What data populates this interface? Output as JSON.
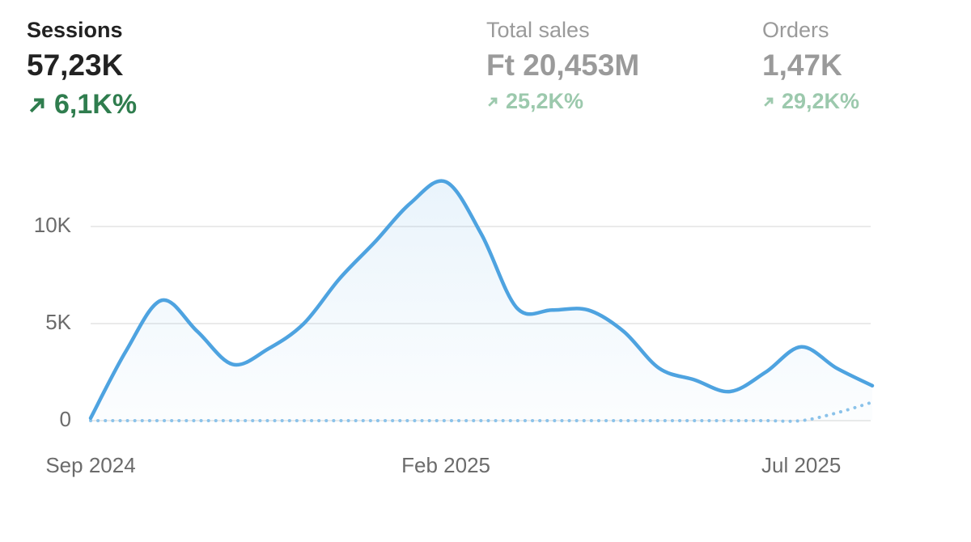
{
  "metrics": [
    {
      "label": "Sessions",
      "value": "57,23K",
      "change": "6,1K%"
    },
    {
      "label": "Total sales",
      "value": "Ft 20,453M",
      "change": "25,2K%"
    },
    {
      "label": "Orders",
      "value": "1,47K",
      "change": "29,2K%"
    }
  ],
  "chart_data": {
    "type": "line",
    "categories": [
      "Sep 2024",
      null,
      null,
      null,
      null,
      null,
      null,
      null,
      null,
      null,
      "Feb 2025",
      null,
      null,
      null,
      null,
      null,
      null,
      null,
      null,
      null,
      "Jul 2025",
      null,
      null
    ],
    "series": [
      {
        "color": "#4ea3e0",
        "values": [
          130,
          3600,
          6200,
          4600,
          2900,
          3700,
          5000,
          7300,
          9200,
          11200,
          12300,
          9600,
          5800,
          5700,
          5700,
          4600,
          2700,
          2100,
          1500,
          2500,
          3800,
          2700,
          1800
        ]
      },
      {
        "color": "#8cc3ea",
        "dotted": true,
        "values": [
          0,
          0,
          0,
          0,
          0,
          0,
          0,
          0,
          0,
          0,
          0,
          0,
          0,
          0,
          0,
          0,
          0,
          0,
          0,
          0,
          0,
          400,
          950
        ]
      }
    ],
    "ylim": [
      0,
      13000
    ],
    "yticks": [
      {
        "value": 0,
        "label": "0"
      },
      {
        "value": 5000,
        "label": "5K"
      },
      {
        "value": 10000,
        "label": "10K"
      }
    ],
    "grid": true
  }
}
